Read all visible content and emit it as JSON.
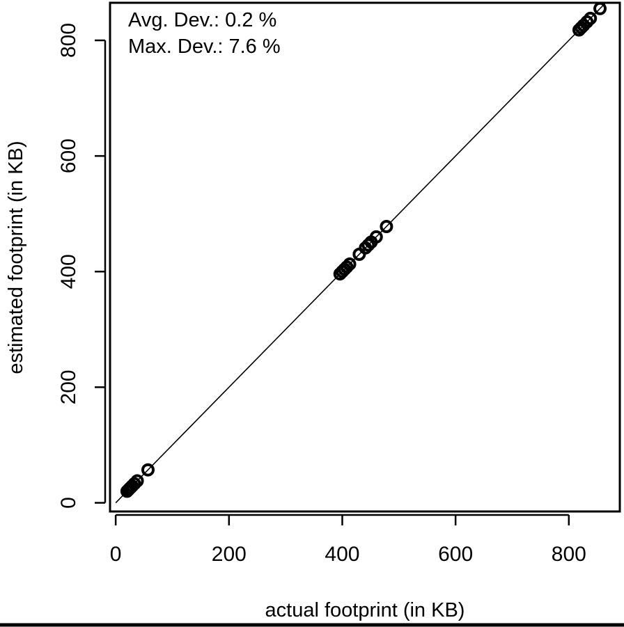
{
  "chart_data": {
    "type": "scatter",
    "title": "",
    "xlabel": "actual footprint (in KB)",
    "ylabel": "estimated footprint (in KB)",
    "xlim": [
      -10,
      890
    ],
    "ylim": [
      -15,
      865
    ],
    "x_ticks": [
      "0",
      "200",
      "400",
      "600",
      "800"
    ],
    "y_ticks": [
      "0",
      "200",
      "400",
      "600",
      "800"
    ],
    "grid": false,
    "legend": "none",
    "annotations": [
      "Avg. Dev.: 0.2 %",
      "Max. Dev.: 7.6 %"
    ],
    "reference_line": {
      "description": "y = x",
      "from": [
        0,
        0
      ],
      "to": [
        890,
        890
      ]
    },
    "series": [
      {
        "points": [
          {
            "x": 20,
            "y": 20
          },
          {
            "x": 23,
            "y": 23
          },
          {
            "x": 26,
            "y": 26
          },
          {
            "x": 29,
            "y": 29
          },
          {
            "x": 33,
            "y": 33
          },
          {
            "x": 38,
            "y": 38
          },
          {
            "x": 57,
            "y": 57
          },
          {
            "x": 396,
            "y": 396
          },
          {
            "x": 400,
            "y": 400
          },
          {
            "x": 404,
            "y": 404
          },
          {
            "x": 408,
            "y": 408
          },
          {
            "x": 413,
            "y": 413
          },
          {
            "x": 430,
            "y": 430
          },
          {
            "x": 441,
            "y": 441
          },
          {
            "x": 446,
            "y": 446
          },
          {
            "x": 451,
            "y": 451
          },
          {
            "x": 460,
            "y": 460
          },
          {
            "x": 478,
            "y": 478
          },
          {
            "x": 818,
            "y": 818
          },
          {
            "x": 822,
            "y": 822
          },
          {
            "x": 826,
            "y": 826
          },
          {
            "x": 832,
            "y": 832
          },
          {
            "x": 838,
            "y": 838
          },
          {
            "x": 855,
            "y": 855
          }
        ]
      }
    ]
  }
}
